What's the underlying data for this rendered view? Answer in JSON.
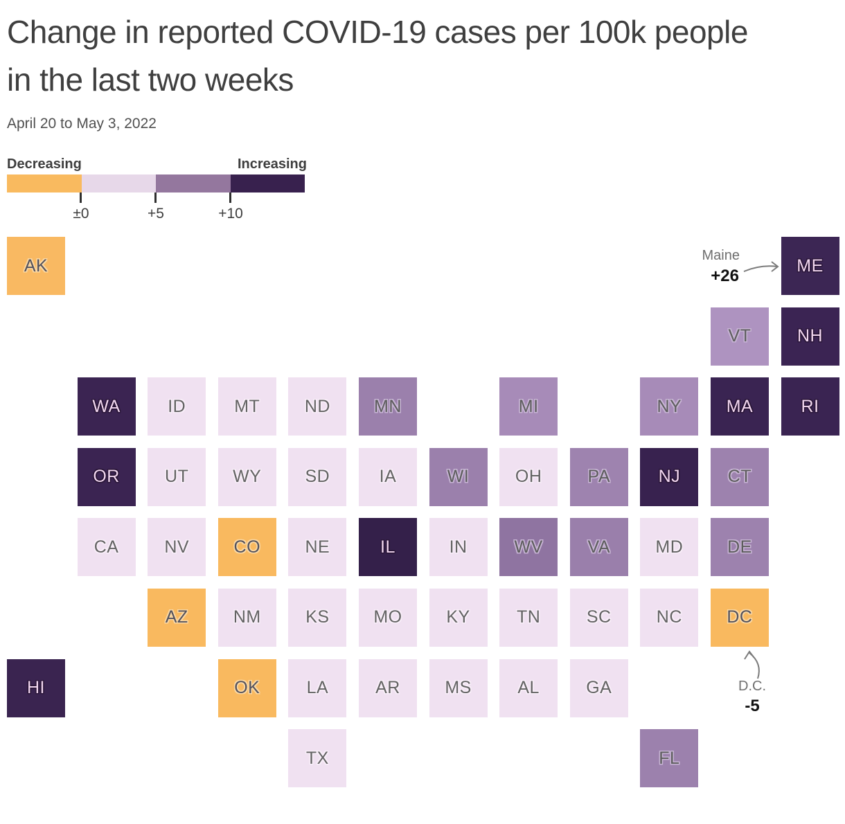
{
  "title": "Change in reported COVID-19 cases per 100k people in the last two weeks",
  "subtitle": "April 20 to May 3, 2022",
  "legend": {
    "left_label": "Decreasing",
    "right_label": "Increasing",
    "ticks": [
      "±0",
      "+5",
      "+10"
    ],
    "segments": [
      {
        "bucket": "decreasing",
        "color": "#F9BA5F"
      },
      {
        "bucket": "low",
        "color": "#E7D8E9"
      },
      {
        "bucket": "mid",
        "color": "#94779E"
      },
      {
        "bucket": "high",
        "color": "#38214E"
      }
    ]
  },
  "annotations": {
    "maine": {
      "name": "Maine",
      "value": "+26"
    },
    "dc": {
      "name": "D.C.",
      "value": "-5"
    }
  },
  "chart_data": {
    "type": "heatmap",
    "subtype": "us-state-tile-grid-map",
    "title": "Change in reported COVID-19 cases per 100k people in the last two weeks",
    "subtitle": "April 20 to May 3, 2022",
    "color_scale": {
      "decreasing": {
        "range": "below ±0",
        "color": "#F9BA5F"
      },
      "low": {
        "range": "±0 to +5",
        "color": "#E7D8E9"
      },
      "mid": {
        "range": "+5 to +10",
        "color": "#94779E"
      },
      "high": {
        "range": "+10 and above",
        "color": "#38214E"
      }
    },
    "labeled_values": {
      "ME": 26,
      "DC": -5
    },
    "states": [
      {
        "abbr": "AK",
        "row": 0,
        "col": 0,
        "bucket": "decreasing",
        "color": "#F9B962"
      },
      {
        "abbr": "ME",
        "row": 0,
        "col": 11,
        "bucket": "high",
        "color": "#3C2654"
      },
      {
        "abbr": "VT",
        "row": 1,
        "col": 10,
        "bucket": "mid",
        "color": "#AE93C0"
      },
      {
        "abbr": "NH",
        "row": 1,
        "col": 11,
        "bucket": "high",
        "color": "#3B2453"
      },
      {
        "abbr": "WA",
        "row": 2,
        "col": 1,
        "bucket": "high",
        "color": "#3B2452"
      },
      {
        "abbr": "ID",
        "row": 2,
        "col": 2,
        "bucket": "low",
        "color": "#F0E1F1"
      },
      {
        "abbr": "MT",
        "row": 2,
        "col": 3,
        "bucket": "low",
        "color": "#F0E1F1"
      },
      {
        "abbr": "ND",
        "row": 2,
        "col": 4,
        "bucket": "low",
        "color": "#F0E1F1"
      },
      {
        "abbr": "MN",
        "row": 2,
        "col": 5,
        "bucket": "mid",
        "color": "#9B80AC"
      },
      {
        "abbr": "MI",
        "row": 2,
        "col": 7,
        "bucket": "mid",
        "color": "#A78BB8"
      },
      {
        "abbr": "NY",
        "row": 2,
        "col": 9,
        "bucket": "mid",
        "color": "#A78BB8"
      },
      {
        "abbr": "MA",
        "row": 2,
        "col": 10,
        "bucket": "high",
        "color": "#3A2452"
      },
      {
        "abbr": "RI",
        "row": 2,
        "col": 11,
        "bucket": "high",
        "color": "#3A2452"
      },
      {
        "abbr": "OR",
        "row": 3,
        "col": 1,
        "bucket": "high",
        "color": "#3B2452"
      },
      {
        "abbr": "UT",
        "row": 3,
        "col": 2,
        "bucket": "low",
        "color": "#F0E1F1"
      },
      {
        "abbr": "WY",
        "row": 3,
        "col": 3,
        "bucket": "low",
        "color": "#F0E1F1"
      },
      {
        "abbr": "SD",
        "row": 3,
        "col": 4,
        "bucket": "low",
        "color": "#F0E1F1"
      },
      {
        "abbr": "IA",
        "row": 3,
        "col": 5,
        "bucket": "low",
        "color": "#F0E1F1"
      },
      {
        "abbr": "WI",
        "row": 3,
        "col": 6,
        "bucket": "mid",
        "color": "#9B80AC"
      },
      {
        "abbr": "OH",
        "row": 3,
        "col": 7,
        "bucket": "low",
        "color": "#F0E1F1"
      },
      {
        "abbr": "PA",
        "row": 3,
        "col": 8,
        "bucket": "mid",
        "color": "#9E83AF"
      },
      {
        "abbr": "NJ",
        "row": 3,
        "col": 9,
        "bucket": "high",
        "color": "#38224F"
      },
      {
        "abbr": "CT",
        "row": 3,
        "col": 10,
        "bucket": "mid",
        "color": "#9D82AE"
      },
      {
        "abbr": "CA",
        "row": 4,
        "col": 1,
        "bucket": "low",
        "color": "#F0E1F1"
      },
      {
        "abbr": "NV",
        "row": 4,
        "col": 2,
        "bucket": "low",
        "color": "#F0E1F1"
      },
      {
        "abbr": "CO",
        "row": 4,
        "col": 3,
        "bucket": "decreasing",
        "color": "#F9B95F"
      },
      {
        "abbr": "NE",
        "row": 4,
        "col": 4,
        "bucket": "low",
        "color": "#F0E1F1"
      },
      {
        "abbr": "IL",
        "row": 4,
        "col": 5,
        "bucket": "high",
        "color": "#34204A"
      },
      {
        "abbr": "IN",
        "row": 4,
        "col": 6,
        "bucket": "low",
        "color": "#F0E1F1"
      },
      {
        "abbr": "WV",
        "row": 4,
        "col": 7,
        "bucket": "mid",
        "color": "#8F74A1"
      },
      {
        "abbr": "VA",
        "row": 4,
        "col": 8,
        "bucket": "mid",
        "color": "#9A7FAB"
      },
      {
        "abbr": "MD",
        "row": 4,
        "col": 9,
        "bucket": "low",
        "color": "#F0E1F1"
      },
      {
        "abbr": "DE",
        "row": 4,
        "col": 10,
        "bucket": "mid",
        "color": "#9D82AE"
      },
      {
        "abbr": "AZ",
        "row": 5,
        "col": 2,
        "bucket": "decreasing",
        "color": "#F9B95F"
      },
      {
        "abbr": "NM",
        "row": 5,
        "col": 3,
        "bucket": "low",
        "color": "#F0E1F1"
      },
      {
        "abbr": "KS",
        "row": 5,
        "col": 4,
        "bucket": "low",
        "color": "#F0E1F1"
      },
      {
        "abbr": "MO",
        "row": 5,
        "col": 5,
        "bucket": "low",
        "color": "#F0E1F1"
      },
      {
        "abbr": "KY",
        "row": 5,
        "col": 6,
        "bucket": "low",
        "color": "#F0E1F1"
      },
      {
        "abbr": "TN",
        "row": 5,
        "col": 7,
        "bucket": "low",
        "color": "#F0E1F1"
      },
      {
        "abbr": "SC",
        "row": 5,
        "col": 8,
        "bucket": "low",
        "color": "#F0E1F1"
      },
      {
        "abbr": "NC",
        "row": 5,
        "col": 9,
        "bucket": "low",
        "color": "#F0E1F1"
      },
      {
        "abbr": "DC",
        "row": 5,
        "col": 10,
        "bucket": "decreasing",
        "color": "#F9B95F"
      },
      {
        "abbr": "HI",
        "row": 6,
        "col": 0,
        "bucket": "high",
        "color": "#3A2450"
      },
      {
        "abbr": "OK",
        "row": 6,
        "col": 3,
        "bucket": "decreasing",
        "color": "#F9B95F"
      },
      {
        "abbr": "LA",
        "row": 6,
        "col": 4,
        "bucket": "low",
        "color": "#F0E1F1"
      },
      {
        "abbr": "AR",
        "row": 6,
        "col": 5,
        "bucket": "low",
        "color": "#F0E1F1"
      },
      {
        "abbr": "MS",
        "row": 6,
        "col": 6,
        "bucket": "low",
        "color": "#F0E1F1"
      },
      {
        "abbr": "AL",
        "row": 6,
        "col": 7,
        "bucket": "low",
        "color": "#F0E1F1"
      },
      {
        "abbr": "GA",
        "row": 6,
        "col": 8,
        "bucket": "low",
        "color": "#F0E1F1"
      },
      {
        "abbr": "TX",
        "row": 7,
        "col": 4,
        "bucket": "low",
        "color": "#F0E1F1"
      },
      {
        "abbr": "FL",
        "row": 7,
        "col": 9,
        "bucket": "mid",
        "color": "#9C81AD"
      }
    ]
  }
}
